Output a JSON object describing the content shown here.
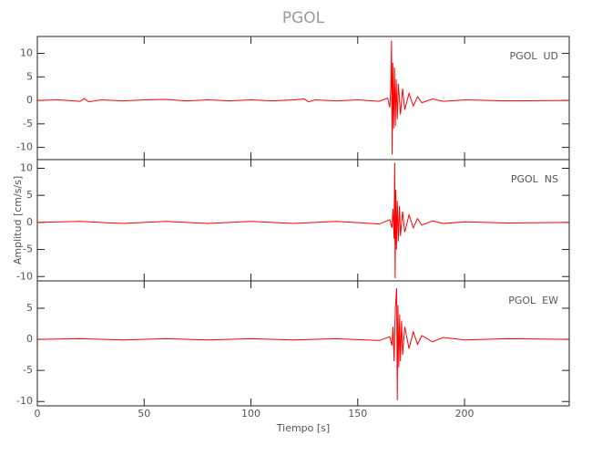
{
  "chart_data": [
    {
      "type": "line",
      "title": "PGOL",
      "label": "PGOL  UD",
      "color": "#ff0000",
      "x": [
        0,
        10,
        20,
        22,
        24,
        30,
        40,
        50,
        60,
        70,
        80,
        90,
        100,
        110,
        120,
        125,
        127,
        130,
        140,
        150,
        160,
        164,
        165,
        165.5,
        165.8,
        166.1,
        166.4,
        166.8,
        167.2,
        167.6,
        168,
        168.5,
        169,
        170,
        171,
        172,
        174,
        176,
        178,
        180,
        185,
        190,
        200,
        220,
        249
      ],
      "values": [
        0,
        0.1,
        -0.2,
        0.4,
        -0.3,
        0.1,
        -0.1,
        0.1,
        0.2,
        -0.1,
        0.1,
        -0.1,
        0.1,
        -0.1,
        0.1,
        0.3,
        -0.3,
        0.1,
        -0.1,
        0.1,
        -0.2,
        0.5,
        -1.5,
        3,
        12.7,
        -11.5,
        8,
        -6,
        7,
        -5.5,
        4.5,
        -4,
        3.5,
        -3,
        2.5,
        -2,
        1.5,
        -1.2,
        0.8,
        -0.5,
        0.3,
        -0.2,
        0.1,
        -0.1,
        0
      ],
      "xlim": [
        0,
        249
      ],
      "ylim": [
        -12.6,
        13.6
      ],
      "yticks": [
        -10,
        -5,
        0,
        5,
        10
      ]
    },
    {
      "type": "line",
      "label": "PGOL  NS",
      "ylabel": "Amplitud [cm/s/s]",
      "color": "#ff0000",
      "x": [
        0,
        20,
        40,
        60,
        80,
        100,
        120,
        140,
        160,
        165,
        166,
        166.5,
        167,
        167.3,
        167.5,
        167.8,
        168.1,
        168.5,
        169,
        169.5,
        170,
        171,
        172,
        174,
        176,
        178,
        180,
        185,
        190,
        200,
        220,
        249
      ],
      "values": [
        0,
        0.2,
        -0.2,
        0.2,
        -0.2,
        0.2,
        -0.2,
        0.2,
        -0.3,
        0.5,
        -1,
        2.5,
        -3,
        11,
        -10.3,
        6,
        -5,
        4,
        -3.5,
        3,
        -2.5,
        2,
        -1.8,
        1.4,
        -1,
        0.7,
        -0.5,
        0.3,
        -0.2,
        0.1,
        -0.1,
        0
      ],
      "xlim": [
        0,
        249
      ],
      "ylim": [
        -10.8,
        11.6
      ],
      "yticks": [
        -10,
        -5,
        0,
        5,
        10
      ]
    },
    {
      "type": "line",
      "label": "PGOL  EW",
      "xlabel": "Tiempo [s]",
      "color": "#ff0000",
      "x": [
        0,
        20,
        40,
        60,
        80,
        100,
        120,
        140,
        160,
        165,
        166,
        166.5,
        167,
        167.6,
        168.2,
        168.5,
        168.8,
        169.2,
        169.6,
        170,
        170.5,
        171,
        172,
        174,
        176,
        178,
        180,
        185,
        190,
        200,
        220,
        249
      ],
      "values": [
        0,
        0.1,
        -0.1,
        0.1,
        -0.1,
        0.1,
        -0.1,
        0.1,
        -0.2,
        0.4,
        -1,
        2,
        -3.5,
        5,
        8.2,
        -9.8,
        5.5,
        -4.5,
        4,
        -3.5,
        3,
        -2.5,
        2,
        -1.5,
        1.2,
        -0.8,
        0.6,
        -0.4,
        0.3,
        -0.1,
        0.1,
        0
      ],
      "xlim": [
        0,
        249
      ],
      "ylim": [
        -10.7,
        9.4
      ],
      "yticks": [
        -10,
        -5,
        0,
        5
      ],
      "xticks": [
        0,
        50,
        100,
        150,
        200
      ]
    }
  ]
}
